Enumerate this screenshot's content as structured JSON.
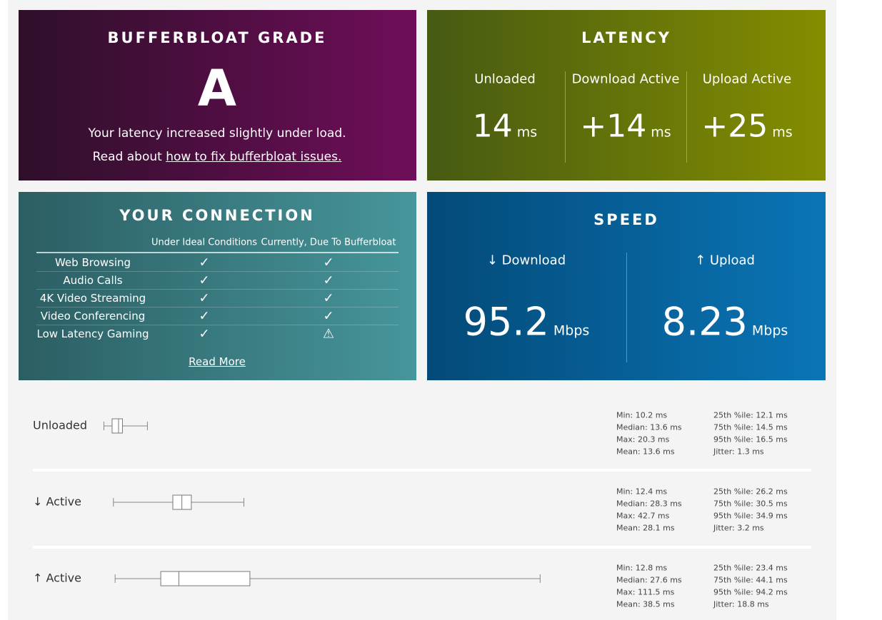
{
  "grade": {
    "title": "BUFFERBLOAT GRADE",
    "letter": "A",
    "summary": "Your latency increased slightly under load.",
    "read_prefix": "Read about",
    "link": "how to fix bufferbloat issues."
  },
  "latency": {
    "title": "LATENCY",
    "columns": [
      {
        "label": "Unloaded",
        "value": 14,
        "unit": "ms"
      },
      {
        "label": "Download Active",
        "value": "+14",
        "unit": "ms"
      },
      {
        "label": "Upload Active",
        "value": "+25",
        "unit": "ms"
      }
    ]
  },
  "connection": {
    "title": "YOUR CONNECTION",
    "headers": [
      "Under Ideal Conditions",
      "Currently, Due To Bufferbloat"
    ],
    "rows": [
      {
        "label": "Web Browsing",
        "ideal": "✓",
        "current": "✓"
      },
      {
        "label": "Audio Calls",
        "ideal": "✓",
        "current": "✓"
      },
      {
        "label": "4K Video Streaming",
        "ideal": "✓",
        "current": "✓"
      },
      {
        "label": "Video Conferencing",
        "ideal": "✓",
        "current": "✓"
      },
      {
        "label": "Low Latency Gaming",
        "ideal": "✓",
        "current": "⚠"
      }
    ],
    "link": "Read More"
  },
  "speed": {
    "title": "SPEED",
    "columns": [
      {
        "label": "↓ Download",
        "value": 95.2,
        "unit": "Mbps"
      },
      {
        "label": "↑ Upload",
        "value": 8.23,
        "unit": "Mbps"
      }
    ]
  },
  "latency_details": [
    {
      "label": "Unloaded",
      "stats": [
        {
          "label": "Min: 10.2 ms",
          "value": 10.2
        },
        {
          "label": "Median: 13.6 ms",
          "value": 13.6
        },
        {
          "label": "Max: 20.3 ms",
          "value": 20.3
        },
        {
          "label": "Mean: 13.6 ms",
          "value": 13.6
        },
        {
          "label": "25th %ile: 12.1 ms",
          "value": 12.1
        },
        {
          "label": "75th %ile: 14.5 ms",
          "value": 14.5
        },
        {
          "label": "95th %ile: 16.5 ms",
          "value": 16.5
        },
        {
          "label": "Jitter: 1.3 ms",
          "value": 1.3
        }
      ]
    },
    {
      "label": "↓ Active",
      "stats": [
        {
          "label": "Min: 12.4 ms",
          "value": 12.4
        },
        {
          "label": "Median: 28.3 ms",
          "value": 28.3
        },
        {
          "label": "Max: 42.7 ms",
          "value": 42.7
        },
        {
          "label": "Mean: 28.1 ms",
          "value": 28.1
        },
        {
          "label": "25th %ile: 26.2 ms",
          "value": 26.2
        },
        {
          "label": "75th %ile: 30.5 ms",
          "value": 30.5
        },
        {
          "label": "95th %ile: 34.9 ms",
          "value": 34.9
        },
        {
          "label": "Jitter: 3.2 ms",
          "value": 3.2
        }
      ]
    },
    {
      "label": "↑ Active",
      "stats": [
        {
          "label": "Min: 12.8 ms",
          "value": 12.8
        },
        {
          "label": "Median: 27.6 ms",
          "value": 27.6
        },
        {
          "label": "Max: 111.5 ms",
          "value": 111.5
        },
        {
          "label": "Mean: 38.5 ms",
          "value": 38.5
        },
        {
          "label": "25th %ile: 23.4 ms",
          "value": 23.4
        },
        {
          "label": "75th %ile: 44.1 ms",
          "value": 44.1
        },
        {
          "label": "95th %ile: 94.2 ms",
          "value": 94.2
        },
        {
          "label": "Jitter: 18.8 ms",
          "value": 18.8
        }
      ]
    }
  ]
}
